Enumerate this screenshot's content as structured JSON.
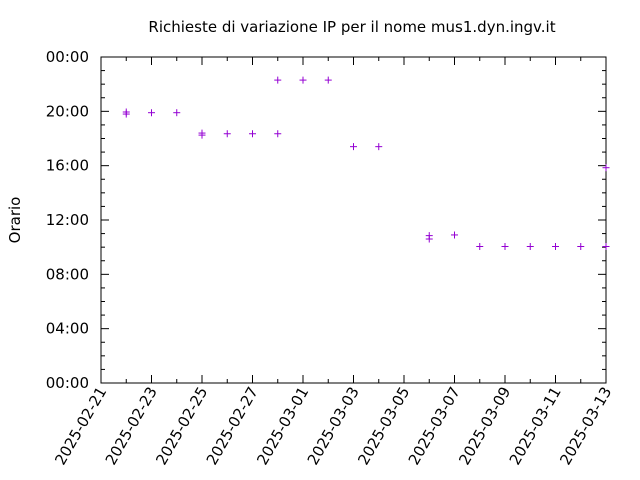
{
  "chart_data": {
    "type": "scatter",
    "title": "Richieste di variazione IP per il nome mus1.dyn.ingv.it",
    "ylabel": "Orario",
    "xlabel": "",
    "xlim": [
      "2025-02-21",
      "2025-03-13"
    ],
    "ylim": [
      0,
      24
    ],
    "x_tick_labels": [
      "2025-02-21",
      "2025-02-23",
      "2025-02-25",
      "2025-02-27",
      "2025-03-01",
      "2025-03-03",
      "2025-03-05",
      "2025-03-07",
      "2025-03-09",
      "2025-03-11",
      "2025-03-13"
    ],
    "y_tick_labels": [
      "00:00",
      "04:00",
      "08:00",
      "12:00",
      "16:00",
      "20:00",
      "00:00"
    ],
    "marker": "+",
    "marker_color": "#9400d3",
    "points": [
      {
        "x": "2025-02-22",
        "y": 19.8
      },
      {
        "x": "2025-02-22",
        "y": 19.95
      },
      {
        "x": "2025-02-23",
        "y": 19.9
      },
      {
        "x": "2025-02-24",
        "y": 19.9
      },
      {
        "x": "2025-02-25",
        "y": 18.25
      },
      {
        "x": "2025-02-25",
        "y": 18.4
      },
      {
        "x": "2025-02-26",
        "y": 18.35
      },
      {
        "x": "2025-02-27",
        "y": 18.35
      },
      {
        "x": "2025-02-28",
        "y": 18.35
      },
      {
        "x": "2025-02-28",
        "y": 22.3
      },
      {
        "x": "2025-03-01",
        "y": 22.3
      },
      {
        "x": "2025-03-02",
        "y": 22.3
      },
      {
        "x": "2025-03-03",
        "y": 17.4
      },
      {
        "x": "2025-03-04",
        "y": 17.4
      },
      {
        "x": "2025-03-06",
        "y": 10.6
      },
      {
        "x": "2025-03-06",
        "y": 10.85
      },
      {
        "x": "2025-03-07",
        "y": 10.9
      },
      {
        "x": "2025-03-08",
        "y": 10.05
      },
      {
        "x": "2025-03-09",
        "y": 10.05
      },
      {
        "x": "2025-03-10",
        "y": 10.05
      },
      {
        "x": "2025-03-11",
        "y": 10.05
      },
      {
        "x": "2025-03-12",
        "y": 10.05
      },
      {
        "x": "2025-03-13",
        "y": 10.05
      },
      {
        "x": "2025-03-13",
        "y": 15.85
      }
    ]
  }
}
